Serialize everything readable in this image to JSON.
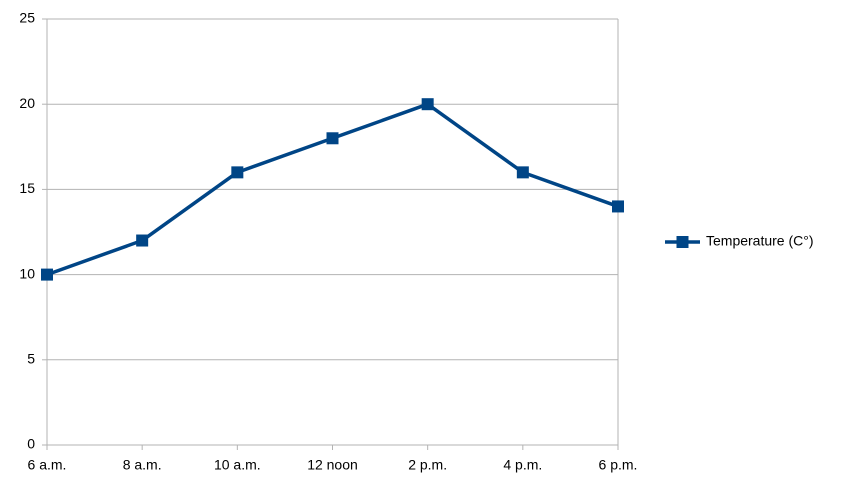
{
  "chart_data": {
    "type": "line",
    "categories": [
      "6 a.m.",
      "8 a.m.",
      "10 a.m.",
      "12 noon",
      "2 p.m.",
      "4 p.m.",
      "6 p.m."
    ],
    "series": [
      {
        "name": "Temperature (C°)",
        "color": "#004586",
        "values": [
          10,
          12,
          16,
          18,
          20,
          16,
          14
        ]
      }
    ],
    "ylim": [
      0,
      25
    ],
    "yticks": [
      0,
      5,
      10,
      15,
      20,
      25
    ],
    "grid": true,
    "legend": "right"
  }
}
